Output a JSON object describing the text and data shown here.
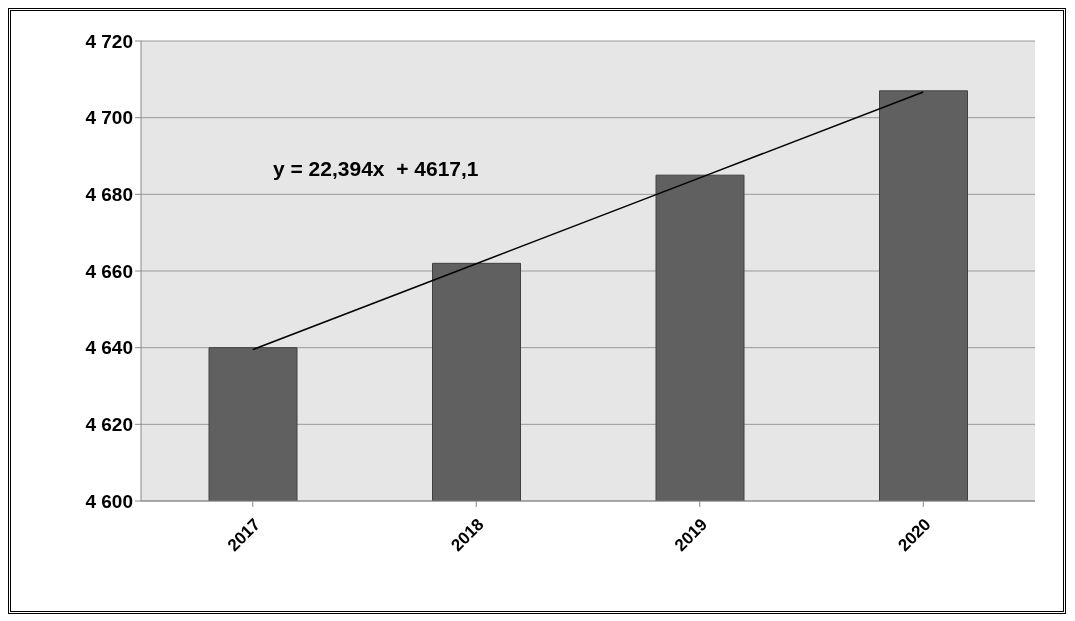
{
  "chart_data": {
    "type": "bar",
    "categories": [
      "2017",
      "2018",
      "2019",
      "2020"
    ],
    "series": [
      {
        "color": "#606060",
        "values": [
          4640,
          4662,
          4685,
          4707
        ]
      },
      {
        "type": "line",
        "color": "#000000",
        "values": [
          4639.5,
          4661.9,
          4684.3,
          4706.7
        ]
      }
    ],
    "ylim": [
      4600,
      4720
    ],
    "yticks": [
      4600,
      4620,
      4640,
      4660,
      4680,
      4700,
      4720
    ],
    "grid": "y",
    "legend": false,
    "marker": "none",
    "annotations": [
      "y = 22,394x  + 4617,1"
    ]
  }
}
